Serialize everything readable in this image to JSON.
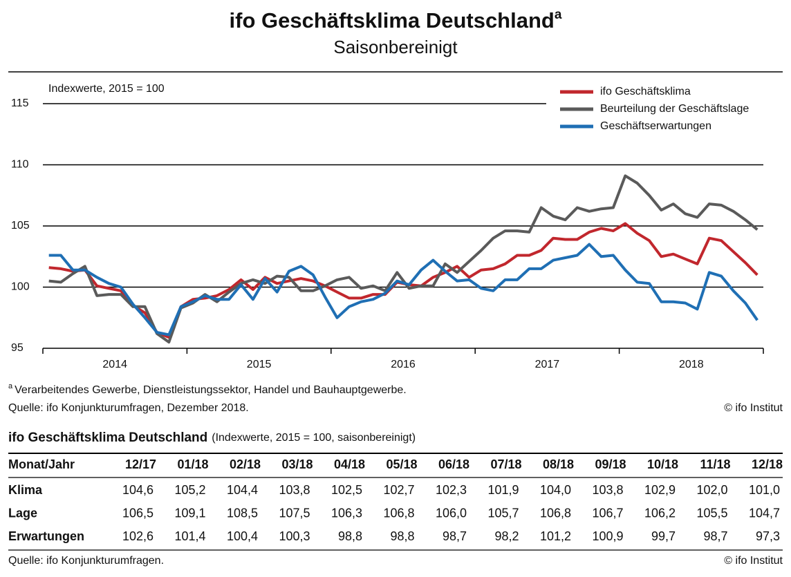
{
  "chart_data": {
    "type": "line",
    "title": "ifo Geschäftsklima Deutschland",
    "title_superscript": "a",
    "subtitle": "Saisonbereinigt",
    "y_axis_label": "Indexwerte, 2015 = 100",
    "categories": [
      null,
      null,
      null,
      null,
      null,
      "2014",
      null,
      null,
      null,
      null,
      null,
      null,
      null,
      null,
      null,
      null,
      null,
      "2015",
      null,
      null,
      null,
      null,
      null,
      null,
      null,
      null,
      null,
      null,
      null,
      "2016",
      null,
      null,
      null,
      null,
      null,
      null,
      null,
      null,
      null,
      null,
      null,
      "2017",
      null,
      null,
      null,
      null,
      null,
      null,
      null,
      null,
      null,
      null,
      null,
      "2018",
      null,
      null,
      null,
      null,
      null,
      null
    ],
    "series": [
      {
        "name": "ifo Geschäftsklima",
        "color": "#c1272d",
        "values": [
          101.6,
          101.5,
          101.3,
          101.4,
          100.1,
          99.9,
          99.7,
          98.5,
          97.9,
          96.3,
          95.9,
          98.4,
          99.0,
          99.1,
          99.3,
          99.8,
          100.6,
          99.8,
          100.8,
          100.3,
          100.5,
          100.7,
          100.5,
          100.1,
          99.6,
          99.1,
          99.1,
          99.4,
          99.4,
          100.4,
          100.2,
          100.1,
          100.8,
          101.2,
          101.7,
          100.8,
          101.4,
          101.5,
          101.9,
          102.6,
          102.6,
          103.0,
          104.0,
          103.9,
          103.9,
          104.5,
          104.8,
          104.6,
          105.2,
          104.4,
          103.8,
          102.5,
          102.7,
          102.3,
          101.9,
          104.0,
          103.8,
          102.9,
          102.0,
          101.0
        ]
      },
      {
        "name": "Beurteilung der Geschäftslage",
        "color": "#5a5a5a",
        "values": [
          100.5,
          100.4,
          101.1,
          101.7,
          99.3,
          99.4,
          99.4,
          98.4,
          98.4,
          96.2,
          95.5,
          98.3,
          98.7,
          99.4,
          98.8,
          99.6,
          100.3,
          100.6,
          100.3,
          100.9,
          100.8,
          99.7,
          99.7,
          100.1,
          100.6,
          100.8,
          99.9,
          100.1,
          99.7,
          101.2,
          99.9,
          100.1,
          100.1,
          101.9,
          101.2,
          102.1,
          103.0,
          104.0,
          104.6,
          104.6,
          104.5,
          106.5,
          105.8,
          105.5,
          106.5,
          106.2,
          106.4,
          106.5,
          109.1,
          108.5,
          107.5,
          106.3,
          106.8,
          106.0,
          105.7,
          106.8,
          106.7,
          106.2,
          105.5,
          104.7
        ]
      },
      {
        "name": "Geschäftserwartungen",
        "color": "#1f6fb4",
        "values": [
          102.6,
          102.6,
          101.4,
          101.4,
          100.8,
          100.3,
          100.0,
          98.6,
          97.5,
          96.3,
          96.1,
          98.4,
          98.8,
          99.3,
          99.0,
          99.0,
          100.2,
          99.0,
          100.7,
          99.6,
          101.3,
          101.7,
          101.0,
          99.2,
          97.5,
          98.4,
          98.8,
          99.0,
          99.5,
          100.5,
          100.2,
          101.4,
          102.2,
          101.3,
          100.5,
          100.6,
          99.9,
          99.7,
          100.6,
          100.6,
          101.5,
          101.5,
          102.2,
          102.4,
          102.6,
          103.5,
          102.5,
          102.6,
          101.4,
          100.4,
          100.3,
          98.8,
          98.8,
          98.7,
          98.2,
          101.2,
          100.9,
          99.7,
          98.7,
          97.3
        ]
      }
    ],
    "ylim": [
      95,
      115
    ],
    "yticks": [
      95,
      100,
      105,
      110,
      115
    ],
    "grid": true,
    "legend": "top-right",
    "footnote_marker": "a",
    "footnote": "Verarbeitendes Gewerbe, Dienstleistungssektor, Handel und Bauhauptgewerbe.",
    "source": "Quelle: ifo Konjunkturumfragen, Dezember 2018.",
    "copyright": "© ifo Institut"
  },
  "table": {
    "title": "ifo Geschäftsklima Deutschland",
    "subtitle": "(Indexwerte, 2015 = 100, saisonbereinigt)",
    "header": [
      "Monat/Jahr",
      "12/17",
      "01/18",
      "02/18",
      "03/18",
      "04/18",
      "05/18",
      "06/18",
      "07/18",
      "08/18",
      "09/18",
      "10/18",
      "11/18",
      "12/18"
    ],
    "rows": [
      [
        "Klima",
        "104,6",
        "105,2",
        "104,4",
        "103,8",
        "102,5",
        "102,7",
        "102,3",
        "101,9",
        "104,0",
        "103,8",
        "102,9",
        "102,0",
        "101,0"
      ],
      [
        "Lage",
        "106,5",
        "109,1",
        "108,5",
        "107,5",
        "106,3",
        "106,8",
        "106,0",
        "105,7",
        "106,8",
        "106,7",
        "106,2",
        "105,5",
        "104,7"
      ],
      [
        "Erwartungen",
        "102,6",
        "101,4",
        "100,4",
        "100,3",
        "98,8",
        "98,8",
        "98,7",
        "98,2",
        "101,2",
        "100,9",
        "99,7",
        "98,7",
        "97,3"
      ]
    ],
    "source": "Quelle: ifo Konjunkturumfragen.",
    "copyright": "© ifo Institut"
  }
}
